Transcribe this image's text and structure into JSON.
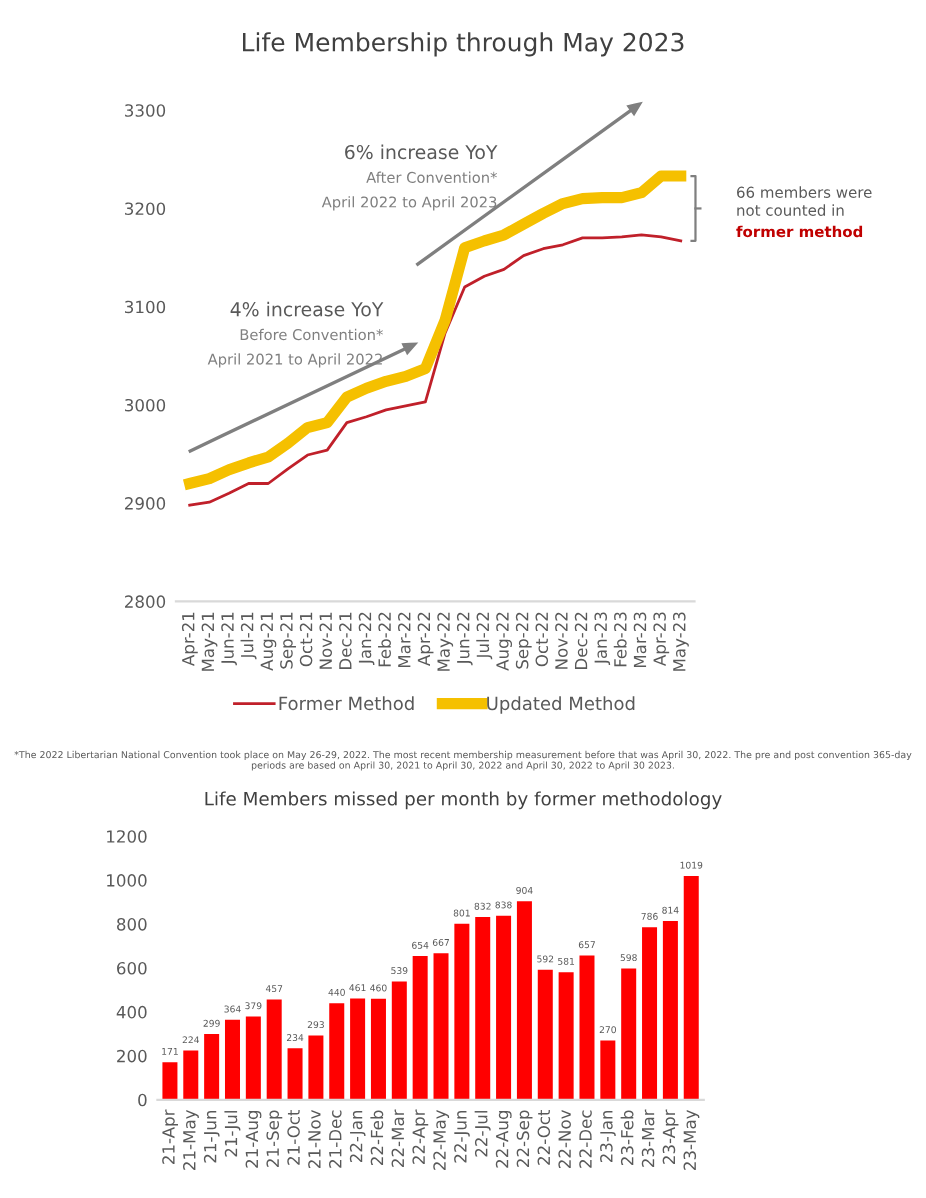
{
  "chart_data": [
    {
      "type": "line",
      "title": "Life Membership through May 2023",
      "categories": [
        "Apr-21",
        "May-21",
        "Jun-21",
        "Jul-21",
        "Aug-21",
        "Sep-21",
        "Oct-21",
        "Nov-21",
        "Dec-21",
        "Jan-22",
        "Feb-22",
        "Mar-22",
        "Apr-22",
        "May-22",
        "Jun-22",
        "Jul-22",
        "Aug-22",
        "Sep-22",
        "Oct-22",
        "Nov-22",
        "Dec-22",
        "Jan-23",
        "Feb-23",
        "Mar-23",
        "Apr-23",
        "May-23"
      ],
      "series": [
        {
          "name": "Former Method",
          "color": "#c0202a",
          "values": [
            2898,
            2901,
            2910,
            2920,
            2920,
            2935,
            2949,
            2954,
            2982,
            2988,
            2995,
            2999,
            3003,
            3073,
            3120,
            3131,
            3138,
            3152,
            3159,
            3163,
            3170,
            3170,
            3171,
            3173,
            3171,
            3167
          ]
        },
        {
          "name": "Updated Method",
          "color": "#f5c000",
          "values": [
            2920,
            2925,
            2934,
            2941,
            2947,
            2961,
            2977,
            2982,
            3008,
            3017,
            3024,
            3029,
            3037,
            3086,
            3160,
            3167,
            3173,
            3184,
            3195,
            3205,
            3210,
            3211,
            3211,
            3216,
            3233,
            3233
          ]
        }
      ],
      "ylim": [
        2800,
        3300
      ],
      "yticks": [
        2800,
        2900,
        3000,
        3100,
        3200,
        3300
      ],
      "grid": false,
      "legend": "bottom",
      "annotations": [
        "6% increase YoY",
        "After Convention*",
        "April 2022 to April 2023",
        "4% increase YoY",
        "Before Convention*",
        "April 2021 to April 2022",
        "66 members were\nnot counted in",
        "former method",
        "*The 2022 Libertarian National Convention took place on May 26-29, 2022. The most recent membership measurement before that was April 30, 2022. The pre and post convention 365-day periods are based on April 30, 2021 to April 30, 2022 and April 30, 2022 to April 30 2023."
      ]
    },
    {
      "type": "bar",
      "title": "Life Members missed per month by former methodology",
      "categories": [
        "21-Apr",
        "21-May",
        "21-Jun",
        "21-Jul",
        "21-Aug",
        "21-Sep",
        "21-Oct",
        "21-Nov",
        "21-Dec",
        "22-Jan",
        "22-Feb",
        "22-Mar",
        "22-Apr",
        "22-May",
        "22-Jun",
        "22-Jul",
        "22-Aug",
        "22-Sep",
        "22-Oct",
        "22-Nov",
        "22-Dec",
        "23-Jan",
        "23-Feb",
        "23-Mar",
        "23-Apr",
        "23-May"
      ],
      "values": [
        171,
        224,
        299,
        364,
        379,
        457,
        234,
        293,
        440,
        461,
        460,
        539,
        654,
        667,
        801,
        832,
        838,
        904,
        592,
        581,
        657,
        270,
        598,
        786,
        814,
        1019
      ],
      "color": "#ff0000",
      "ylim": [
        0,
        1200
      ],
      "yticks": [
        0,
        200,
        400,
        600,
        800,
        1000,
        1200
      ],
      "grid": false,
      "data_labels": true
    }
  ]
}
